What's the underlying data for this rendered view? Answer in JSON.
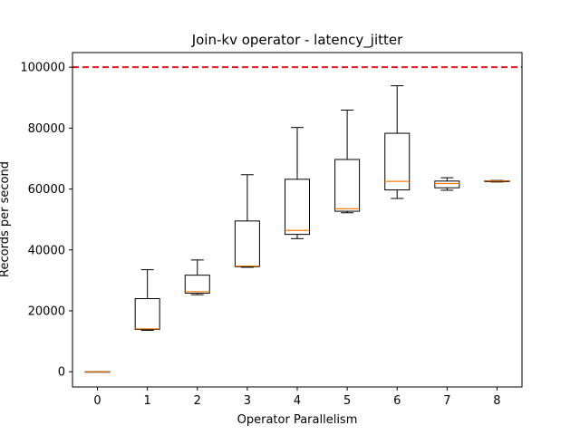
{
  "chart_data": {
    "type": "boxplot",
    "title": "Join-kv operator - latency_jitter",
    "xlabel": "Operator Parallelism",
    "ylabel": "Records per second",
    "categories": [
      "0",
      "1",
      "2",
      "3",
      "4",
      "5",
      "6",
      "7",
      "8"
    ],
    "boxes": [
      {
        "x": 0,
        "whisker_low": 0,
        "q1": 0,
        "median": 0,
        "q3": 0,
        "whisker_high": 0
      },
      {
        "x": 1,
        "whisker_low": 13600,
        "q1": 13900,
        "median": 14100,
        "q3": 24000,
        "whisker_high": 33500
      },
      {
        "x": 2,
        "whisker_low": 25300,
        "q1": 25800,
        "median": 26300,
        "q3": 31700,
        "whisker_high": 36700
      },
      {
        "x": 3,
        "whisker_low": 34300,
        "q1": 34500,
        "median": 34700,
        "q3": 49500,
        "whisker_high": 64700
      },
      {
        "x": 4,
        "whisker_low": 43700,
        "q1": 45100,
        "median": 46400,
        "q3": 63200,
        "whisker_high": 80200
      },
      {
        "x": 5,
        "whisker_low": 52200,
        "q1": 52700,
        "median": 53500,
        "q3": 69700,
        "whisker_high": 85900
      },
      {
        "x": 6,
        "whisker_low": 56900,
        "q1": 59700,
        "median": 62500,
        "q3": 78300,
        "whisker_high": 93900
      },
      {
        "x": 7,
        "whisker_low": 59600,
        "q1": 60400,
        "median": 61800,
        "q3": 62600,
        "whisker_high": 63700
      },
      {
        "x": 8,
        "whisker_low": 62300,
        "q1": 62400,
        "median": 62600,
        "q3": 62700,
        "whisker_high": 62800
      }
    ],
    "reference_line": {
      "y": 100000,
      "color": "#e41a1c",
      "style": "dashed"
    },
    "yticks": [
      0,
      20000,
      40000,
      60000,
      80000,
      100000
    ],
    "ytick_labels": [
      "0",
      "20000",
      "40000",
      "60000",
      "80000",
      "100000"
    ],
    "xlim": [
      -0.5,
      8.5
    ],
    "ylim": [
      -5000,
      104800
    ],
    "grid": false,
    "colors": {
      "box": "#000000",
      "median": "#ff7f0e",
      "reference": "#e41a1c"
    }
  }
}
